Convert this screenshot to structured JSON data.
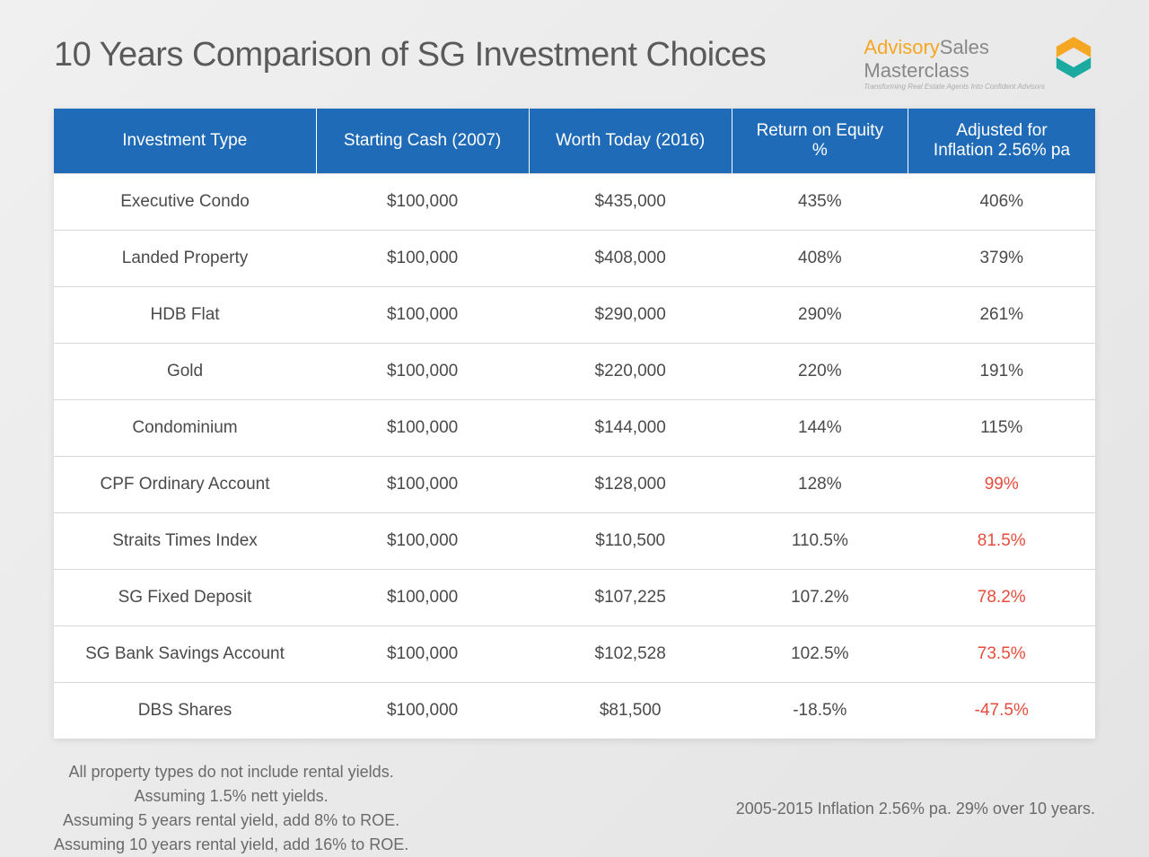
{
  "title": "10 Years Comparison of SG Investment Choices",
  "logo": {
    "advisory": "Advisory",
    "sales": "Sales",
    "line2": "Masterclass",
    "tagline": "Transforming Real Estate Agents Into Confident Advisors",
    "icon_color1": "#f5a623",
    "icon_color2": "#1ba9a0"
  },
  "table": {
    "header_bg": "#1f6bb7",
    "header_fg": "#ffffff",
    "cell_fg": "#4a4a4a",
    "negative_fg": "#e74c3c",
    "border_color": "#d8d8d8",
    "columns": [
      "Investment Type",
      "Starting Cash (2007)",
      "Worth Today (2016)",
      "Return on Equity %",
      "Adjusted for Inflation 2.56% pa"
    ],
    "column_lines": [
      [
        "Investment Type"
      ],
      [
        "Starting Cash (2007)"
      ],
      [
        "Worth Today (2016)"
      ],
      [
        "Return on Equity",
        "%"
      ],
      [
        "Adjusted for",
        "Inflation 2.56% pa"
      ]
    ],
    "rows": [
      {
        "type": "Executive Condo",
        "start": "$100,000",
        "today": "$435,000",
        "roe": "435%",
        "adj": "406%",
        "adj_neg": false
      },
      {
        "type": "Landed Property",
        "start": "$100,000",
        "today": "$408,000",
        "roe": "408%",
        "adj": "379%",
        "adj_neg": false
      },
      {
        "type": "HDB Flat",
        "start": "$100,000",
        "today": "$290,000",
        "roe": "290%",
        "adj": "261%",
        "adj_neg": false
      },
      {
        "type": "Gold",
        "start": "$100,000",
        "today": "$220,000",
        "roe": "220%",
        "adj": "191%",
        "adj_neg": false
      },
      {
        "type": "Condominium",
        "start": "$100,000",
        "today": "$144,000",
        "roe": "144%",
        "adj": "115%",
        "adj_neg": false
      },
      {
        "type": "CPF Ordinary Account",
        "start": "$100,000",
        "today": "$128,000",
        "roe": "128%",
        "adj": "99%",
        "adj_neg": true
      },
      {
        "type": "Straits Times Index",
        "start": "$100,000",
        "today": "$110,500",
        "roe": "110.5%",
        "adj": "81.5%",
        "adj_neg": true
      },
      {
        "type": "SG Fixed Deposit",
        "start": "$100,000",
        "today": "$107,225",
        "roe": "107.2%",
        "adj": "78.2%",
        "adj_neg": true
      },
      {
        "type": "SG Bank Savings Account",
        "start": "$100,000",
        "today": "$102,528",
        "roe": "102.5%",
        "adj": "73.5%",
        "adj_neg": true
      },
      {
        "type": "DBS Shares",
        "start": "$100,000",
        "today": "$81,500",
        "roe": "-18.5%",
        "adj": "-47.5%",
        "adj_neg": true
      }
    ]
  },
  "footer": {
    "left_lines": [
      "All property types do not include rental yields.",
      "Assuming 1.5% nett yields.",
      "Assuming 5 years rental yield, add 8% to ROE.",
      "Assuming 10 years rental yield, add 16% to ROE."
    ],
    "right": "2005-2015 Inflation 2.56% pa. 29% over 10 years."
  }
}
